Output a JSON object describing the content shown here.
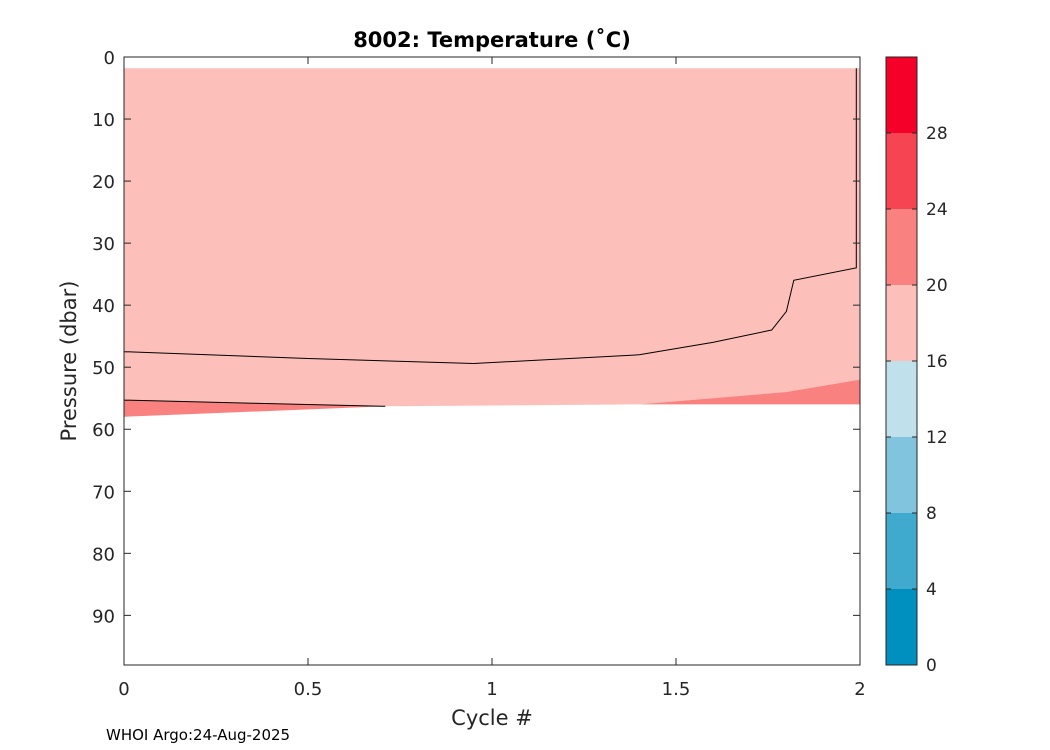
{
  "chart_data": {
    "type": "heatmap",
    "title": "8002:  Temperature (˚C)",
    "xlabel": "Cycle #",
    "ylabel": "Pressure (dbar)",
    "xlim": [
      0,
      2
    ],
    "ylim": [
      0,
      98
    ],
    "y_reversed": true,
    "x_ticks": [
      0,
      0.5,
      1,
      1.5,
      2
    ],
    "x_tick_labels": [
      "0",
      "0.5",
      "1",
      "1.5",
      "2"
    ],
    "y_ticks": [
      0,
      10,
      20,
      30,
      40,
      50,
      60,
      70,
      80,
      90
    ],
    "y_tick_labels": [
      "0",
      "10",
      "20",
      "30",
      "40",
      "50",
      "60",
      "70",
      "80",
      "90"
    ],
    "colorbar": {
      "levels": [
        0,
        4,
        8,
        12,
        16,
        20,
        24,
        28,
        32
      ],
      "tick_values": [
        0,
        4,
        8,
        12,
        16,
        20,
        24,
        28
      ],
      "tick_labels": [
        "0",
        "4",
        "8",
        "12",
        "16",
        "20",
        "24",
        "28"
      ],
      "colors": [
        "#0090bf",
        "#40a9ce",
        "#80c4de",
        "#c0e1ec",
        "#fcbfba",
        "#f98280",
        "#f74452",
        "#f50029"
      ]
    },
    "data_top_pressure": 1.8,
    "data_bottom_boundary": [
      {
        "cycle": 0,
        "pressure": 58
      },
      {
        "cycle": 0.71,
        "pressure": 56.3
      },
      {
        "cycle": 1,
        "pressure": 56
      },
      {
        "cycle": 1.4,
        "pressure": 56
      },
      {
        "cycle": 2,
        "pressure": 56
      }
    ],
    "regions": [
      {
        "label": "16-20",
        "level_band": [
          16,
          20
        ],
        "boundary": [
          {
            "cycle": 0,
            "pressure": 1.8
          },
          {
            "cycle": 2,
            "pressure": 1.8
          },
          {
            "cycle": 2,
            "pressure": 52
          },
          {
            "cycle": 1.8,
            "pressure": 54
          },
          {
            "cycle": 1.4,
            "pressure": 56
          },
          {
            "cycle": 0.71,
            "pressure": 56.3
          },
          {
            "cycle": 0,
            "pressure": 55.3
          }
        ]
      },
      {
        "label": "20-24 left",
        "level_band": [
          20,
          24
        ],
        "boundary": [
          {
            "cycle": 0,
            "pressure": 55.3
          },
          {
            "cycle": 0.71,
            "pressure": 56.3
          },
          {
            "cycle": 0,
            "pressure": 58
          }
        ]
      },
      {
        "label": "20-24 right",
        "level_band": [
          20,
          24
        ],
        "boundary": [
          {
            "cycle": 1.4,
            "pressure": 56
          },
          {
            "cycle": 1.8,
            "pressure": 54
          },
          {
            "cycle": 2,
            "pressure": 52
          },
          {
            "cycle": 2,
            "pressure": 56
          }
        ]
      }
    ],
    "contour_lines": [
      {
        "level": 16,
        "points": [
          {
            "cycle": 0,
            "pressure": 47.5
          },
          {
            "cycle": 0.5,
            "pressure": 48.6
          },
          {
            "cycle": 0.95,
            "pressure": 49.4
          },
          {
            "cycle": 1.4,
            "pressure": 48
          },
          {
            "cycle": 1.6,
            "pressure": 46
          },
          {
            "cycle": 1.76,
            "pressure": 44
          },
          {
            "cycle": 1.8,
            "pressure": 41
          },
          {
            "cycle": 1.82,
            "pressure": 36
          },
          {
            "cycle": 1.99,
            "pressure": 34
          },
          {
            "cycle": 1.99,
            "pressure": 1.8
          }
        ]
      },
      {
        "level": 20,
        "points": [
          {
            "cycle": 0,
            "pressure": 55.3
          },
          {
            "cycle": 0.35,
            "pressure": 55.8
          },
          {
            "cycle": 0.71,
            "pressure": 56.3
          }
        ]
      }
    ]
  },
  "footer": {
    "text": "WHOI Argo:24-Aug-2025"
  }
}
